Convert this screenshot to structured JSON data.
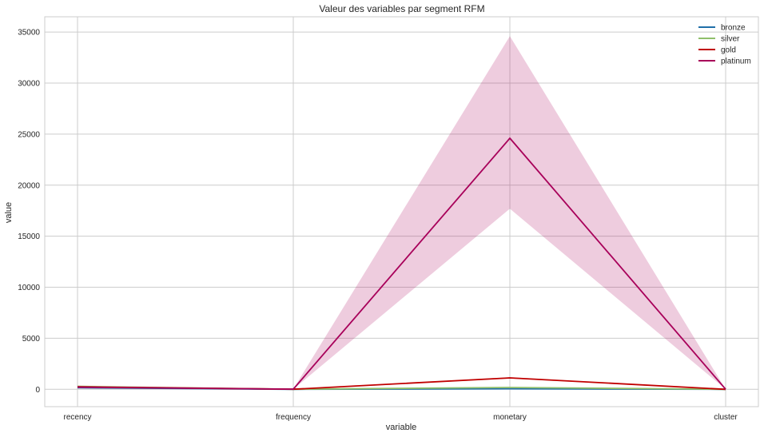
{
  "chart_data": {
    "type": "line",
    "title": "Valeur des variables par segment RFM",
    "xlabel": "variable",
    "ylabel": "value",
    "categories": [
      "recency",
      "frequency",
      "monetary",
      "cluster"
    ],
    "ylim": [
      -1700,
      36500
    ],
    "yticks": [
      0,
      5000,
      10000,
      15000,
      20000,
      25000,
      30000,
      35000
    ],
    "grid": true,
    "legend_position": "top-right",
    "series": [
      {
        "name": "bronze",
        "color": "#1f6fa8",
        "values": [
          150,
          2,
          50,
          0
        ],
        "ci_low": [
          140,
          1,
          45,
          0
        ],
        "ci_high": [
          160,
          3,
          55,
          0
        ]
      },
      {
        "name": "silver",
        "color": "#8fbf6a",
        "values": [
          280,
          4,
          180,
          1
        ],
        "ci_low": [
          230,
          3,
          130,
          1
        ],
        "ci_high": [
          380,
          5,
          240,
          1
        ]
      },
      {
        "name": "gold",
        "color": "#c00000",
        "values": [
          240,
          6,
          1120,
          2
        ],
        "ci_low": [
          220,
          5,
          1050,
          2
        ],
        "ci_high": [
          260,
          7,
          1190,
          2
        ]
      },
      {
        "name": "platinum",
        "color": "#a8005a",
        "values": [
          200,
          15,
          24600,
          3
        ],
        "ci_low": [
          190,
          10,
          17700,
          3
        ],
        "ci_high": [
          210,
          20,
          34600,
          3
        ]
      }
    ]
  }
}
